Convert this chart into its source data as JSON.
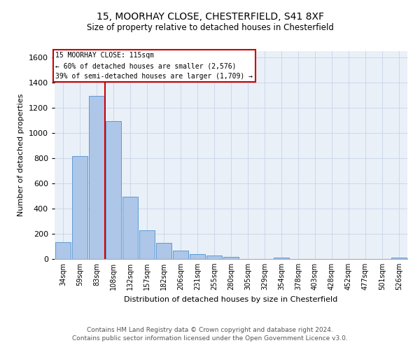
{
  "title_line1": "15, MOORHAY CLOSE, CHESTERFIELD, S41 8XF",
  "title_line2": "Size of property relative to detached houses in Chesterfield",
  "xlabel": "Distribution of detached houses by size in Chesterfield",
  "ylabel": "Number of detached properties",
  "footer_line1": "Contains HM Land Registry data © Crown copyright and database right 2024.",
  "footer_line2": "Contains public sector information licensed under the Open Government Licence v3.0.",
  "bar_labels": [
    "34sqm",
    "59sqm",
    "83sqm",
    "108sqm",
    "132sqm",
    "157sqm",
    "182sqm",
    "206sqm",
    "231sqm",
    "255sqm",
    "280sqm",
    "305sqm",
    "329sqm",
    "354sqm",
    "378sqm",
    "403sqm",
    "428sqm",
    "452sqm",
    "477sqm",
    "501sqm",
    "526sqm"
  ],
  "bar_values": [
    135,
    815,
    1295,
    1090,
    495,
    230,
    130,
    65,
    38,
    27,
    15,
    0,
    0,
    12,
    0,
    0,
    0,
    0,
    0,
    0,
    12
  ],
  "bar_color": "#aec6e8",
  "bar_edge_color": "#5b9bd5",
  "background_color": "#eaf0f8",
  "ylim": [
    0,
    1650
  ],
  "yticks": [
    0,
    200,
    400,
    600,
    800,
    1000,
    1200,
    1400,
    1600
  ],
  "property_bin_index": 3,
  "vline_color": "#cc0000",
  "annotation_text": "15 MOORHAY CLOSE: 115sqm\n← 60% of detached houses are smaller (2,576)\n39% of semi-detached houses are larger (1,709) →",
  "annotation_box_color": "#ffffff",
  "annotation_border_color": "#cc0000",
  "grid_color": "#c8d4e8"
}
